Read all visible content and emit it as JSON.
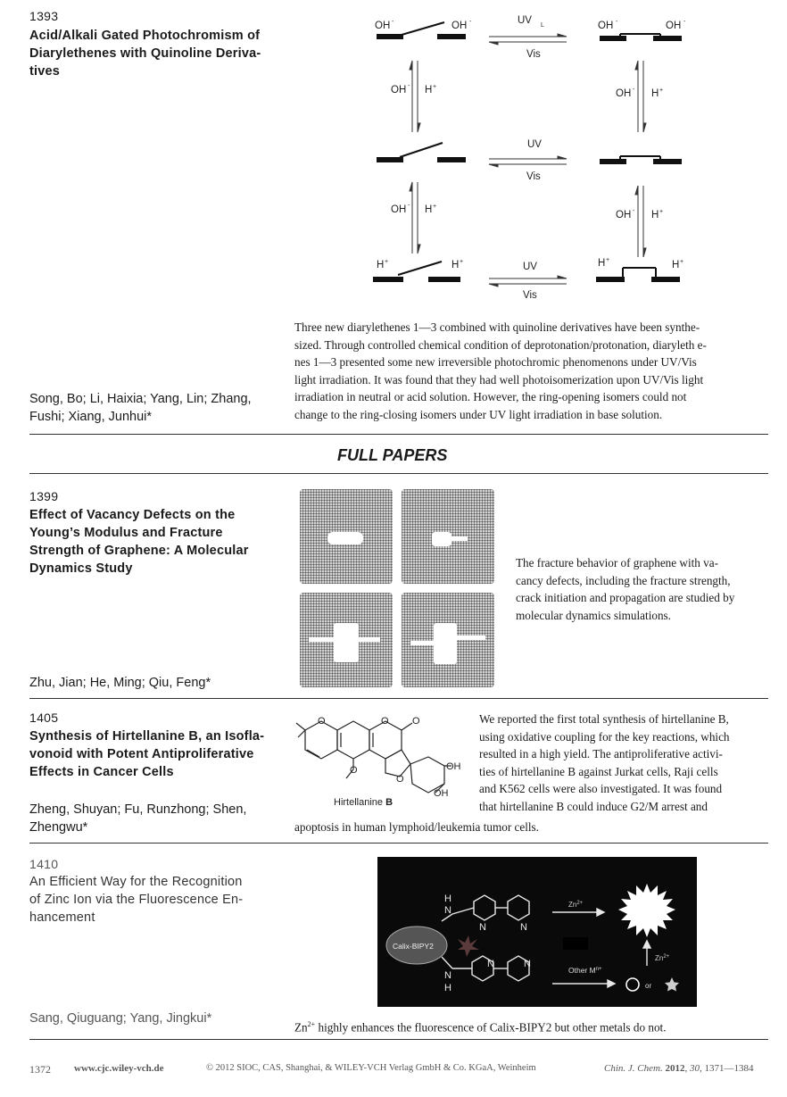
{
  "entries": [
    {
      "page": "1393",
      "title": "Acid/Alkali Gated Photochromism of Diarylethenes with Quinoline Derivatives",
      "title_lines": [
        "Acid/Alkali Gated Photochromism of",
        "Diarylethenes with Quinoline Deriva-",
        "tives"
      ],
      "authors_lines": [
        "Song, Bo; Li, Haixia; Yang, Lin; Zhang,",
        "Fushi; Xiang, Junhui*"
      ],
      "abstract_lines": [
        "Three new diarylethenes 1—3 combined with quinoline derivatives have been synthe-",
        "sized. Through controlled chemical condition of deprotonation/protonation, diaryleth e-",
        "nes 1—3 presented some new irreversible photochromic phenomenons under UV/Vis",
        "light irradiation. It was found that they had well photoisomerization upon UV/Vis light",
        "irradiation in neutral or acid solution. However, the ring-opening isomers could not",
        "change to the ring-closing isomers under UV light irradiation in base solution."
      ],
      "scheme": {
        "oh": "OH",
        "minus": "-",
        "h": "H",
        "plus": "+",
        "uv": "UV",
        "uv_l": "UV",
        "uv_l_sub": "L",
        "vis": "Vis"
      }
    },
    {
      "section": "FULL PAPERS",
      "page": "1399",
      "title_lines": [
        "Effect of Vacancy Defects on the",
        "Young’s Modulus and Fracture",
        "Strength of Graphene: A Molecular",
        "Dynamics Study"
      ],
      "authors_lines": [
        "Zhu, Jian; He, Ming; Qiu, Feng*"
      ],
      "abstract_lines": [
        "The fracture behavior of graphene with va-",
        "cancy defects, including the fracture strength,",
        "crack initiation and propagation are studied by",
        "molecular dynamics simulations."
      ]
    },
    {
      "page": "1405",
      "title_lines": [
        "Synthesis of Hirtellanine B, an Isofla-",
        "vonoid with Potent Antiproliferative",
        "Effects in Cancer Cells"
      ],
      "authors_lines": [
        "Zheng, Shuyan; Fu, Runzhong; Shen,",
        "Zhengwu*"
      ],
      "abstract_lines": [
        "We reported the first total synthesis of hirtellanine B,",
        "using oxidative coupling for the key reactions, which",
        "resulted in a high yield. The antiproliferative activi-",
        "ties of hirtellanine B against Jurkat cells, Raji cells",
        "and K562 cells were also investigated. It was found",
        "that hirtellanine B could induce G2/M arrest and",
        "apoptosis in human lymphoid/leukemia tumor cells."
      ],
      "structure": {
        "name": "Hirtellanine",
        "name_bold": "B",
        "oh": "OH",
        "o": "O"
      }
    },
    {
      "page": "1410",
      "title_lines": [
        "An Efficient Way for the Recognition",
        "of Zinc Ion via the Fluorescence En-",
        "hancement"
      ],
      "authors_lines": [
        "Sang, Qiuguang; Yang, Jingkui*"
      ],
      "abstract_zn": "Zn",
      "abstract_zn_sup": "2+",
      "abstract_rest": " highly enhances the fluorescence of Calix-BIPY2 but other metals do not.",
      "graphic": {
        "calix": "Calix-BIPY2",
        "zn": "Zn",
        "zn_sup": "2+",
        "other": "Other M",
        "other_sup": "n+",
        "or": "or",
        "n": "N",
        "h": "H"
      }
    }
  ],
  "footer": {
    "page": "1372",
    "url": "www.cjc.wiley-vch.de",
    "copyright": "© 2012 SIOC, CAS, Shanghai, & WILEY-VCH Verlag GmbH & Co. KGaA, Weinheim",
    "journal": "Chin. J. Chem.",
    "year": "2012",
    "volume": "30",
    "pages": ", 1371—1384"
  }
}
